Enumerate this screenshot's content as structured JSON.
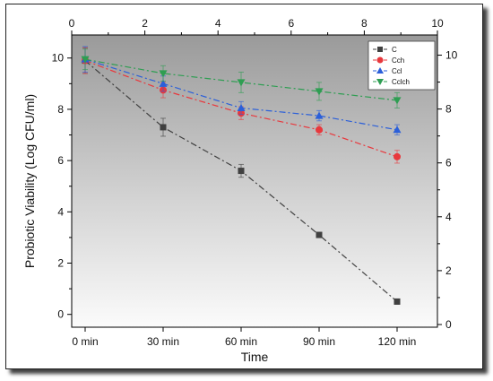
{
  "chart_data": {
    "type": "line",
    "xlabel": "Time",
    "ylabel": "Probiotic Viability (Log CFU/ml)",
    "categories": [
      "0 min",
      "30 min",
      "60 min",
      "90 min",
      "120 min"
    ],
    "x_top_ticks": [
      "0",
      "2",
      "4",
      "6",
      "8",
      "10"
    ],
    "y_left_ticks": [
      "0",
      "2",
      "4",
      "6",
      "8",
      "10"
    ],
    "y_right_ticks": [
      "0",
      "2",
      "4",
      "6",
      "8",
      "10"
    ],
    "ylim": [
      -0.5,
      10.9
    ],
    "grid": false,
    "legend_position": "top-right",
    "series": [
      {
        "name": "C",
        "color": "#404040",
        "marker": "square",
        "dash": "dash-dot",
        "values": [
          9.9,
          7.3,
          5.6,
          3.1,
          0.5
        ],
        "errors": [
          0.5,
          0.35,
          0.25,
          0.1,
          0.1
        ]
      },
      {
        "name": "Cch",
        "color": "#e8383d",
        "marker": "circle",
        "dash": "dash-dot",
        "values": [
          9.9,
          8.75,
          7.85,
          7.2,
          6.15
        ],
        "errors": [
          0.5,
          0.3,
          0.25,
          0.2,
          0.25
        ]
      },
      {
        "name": "Ccl",
        "color": "#2b5fd9",
        "marker": "triangle-up",
        "dash": "dash-dot",
        "values": [
          9.95,
          9.0,
          8.05,
          7.75,
          7.2
        ],
        "errors": [
          0.5,
          0.3,
          0.25,
          0.2,
          0.2
        ]
      },
      {
        "name": "Cclch",
        "color": "#2e9e52",
        "marker": "triangle-down",
        "dash": "dash-dot",
        "values": [
          9.95,
          9.4,
          9.05,
          8.7,
          8.35
        ],
        "errors": [
          0.4,
          0.3,
          0.4,
          0.35,
          0.3
        ]
      }
    ]
  }
}
